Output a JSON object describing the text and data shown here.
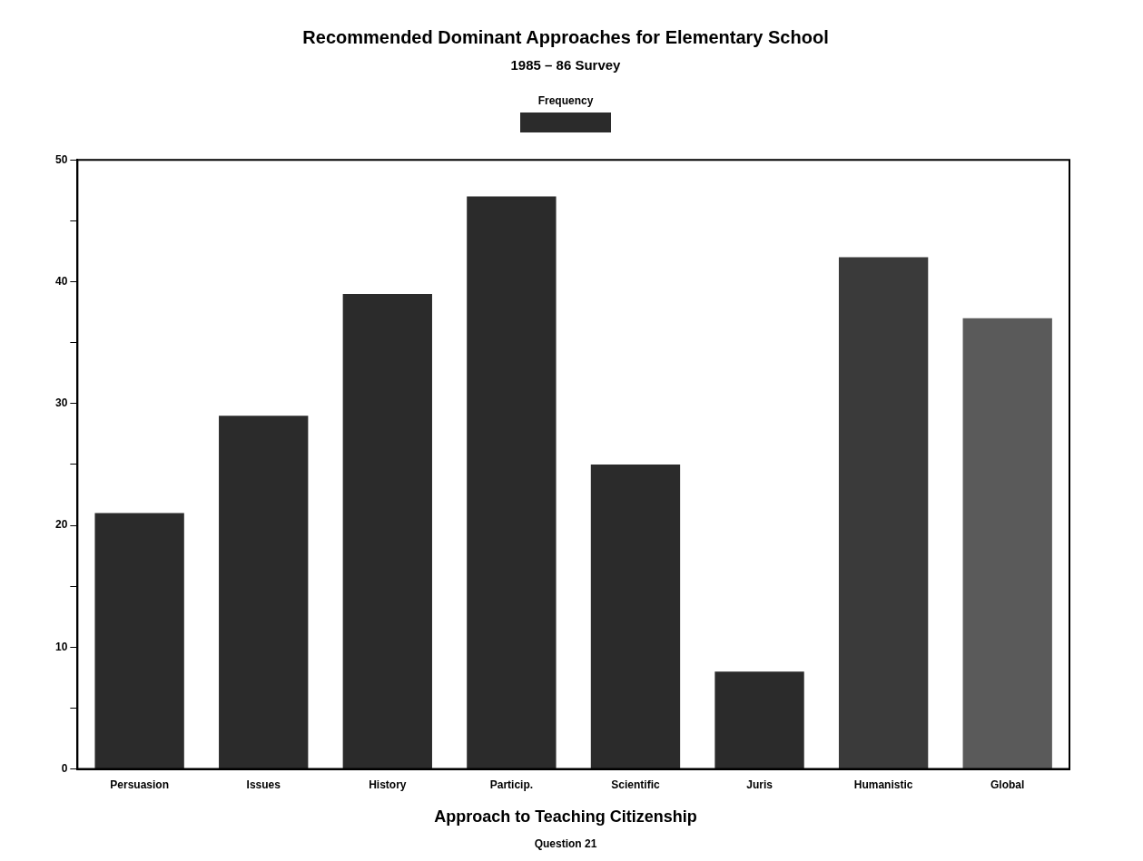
{
  "chart_data": {
    "type": "bar",
    "title": "Recommended Dominant Approaches for Elementary School",
    "subtitle": "1985 – 86 Survey",
    "xlabel": "Approach to Teaching Citizenship",
    "annotations": [
      "Question 21"
    ],
    "categories": [
      "Persuasion",
      "Issues",
      "History",
      "Particip.",
      "Scientific",
      "Juris",
      "Humanistic",
      "Global"
    ],
    "series": [
      {
        "name": "Frequency",
        "color": "#2b2b2b",
        "colors": [
          "#2b2b2b",
          "#2b2b2b",
          "#2b2b2b",
          "#2b2b2b",
          "#2b2b2b",
          "#2b2b2b",
          "#3a3a3a",
          "#5a5a5a"
        ],
        "values": [
          21,
          29,
          39,
          47,
          25,
          8,
          42,
          37
        ]
      }
    ],
    "ylim": [
      0,
      50
    ],
    "yticks": [
      0,
      {
        "value": 5,
        "label": null
      },
      10,
      {
        "value": 15,
        "label": null
      },
      20,
      {
        "value": 25,
        "label": null
      },
      30,
      {
        "value": 35,
        "label": null
      },
      40,
      {
        "value": 45,
        "label": null
      },
      50
    ],
    "grid": false,
    "legend": "top"
  }
}
